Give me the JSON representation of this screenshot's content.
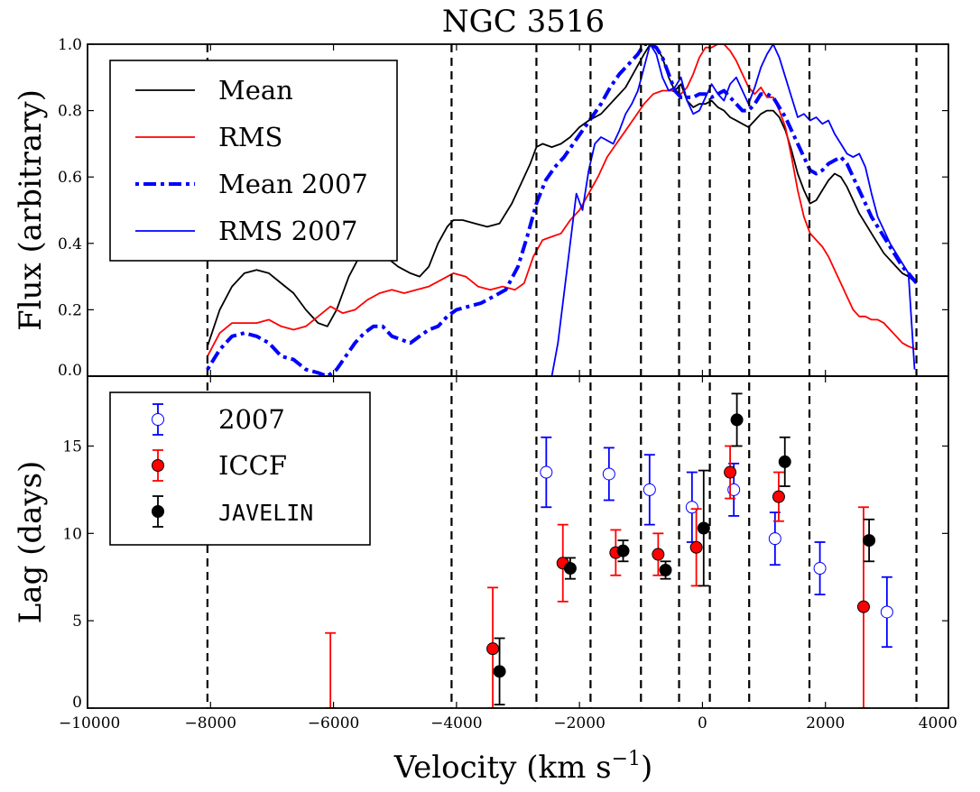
{
  "chart_data": [
    {
      "type": "line",
      "title": "NGC 3516",
      "xlabel": "",
      "ylabel": "Flux (arbitrary)",
      "xlim": [
        -10000,
        4000
      ],
      "ylim": [
        0,
        1.0
      ],
      "yticks": [
        0.0,
        0.2,
        0.4,
        0.6,
        0.8,
        1.0
      ],
      "ytick_labels": [
        "0.0",
        "0.2",
        "0.4",
        "0.6",
        "0.8",
        "1.0"
      ],
      "grid": false,
      "legend_position": "top-left",
      "bin_edges": [
        -8050,
        -4080,
        -2700,
        -1820,
        -1000,
        -380,
        120,
        760,
        1740,
        3480
      ],
      "series": [
        {
          "name": "Mean",
          "color": "#000000",
          "style": "solid",
          "x": [
            -8050,
            -7850,
            -7650,
            -7450,
            -7250,
            -7050,
            -6850,
            -6650,
            -6450,
            -6250,
            -6100,
            -5950,
            -5750,
            -5550,
            -5350,
            -5150,
            -4950,
            -4750,
            -4600,
            -4450,
            -4300,
            -4150,
            -4050,
            -3900,
            -3700,
            -3500,
            -3300,
            -3100,
            -2950,
            -2800,
            -2700,
            -2600,
            -2450,
            -2300,
            -2150,
            -2000,
            -1850,
            -1650,
            -1450,
            -1250,
            -1100,
            -950,
            -850,
            -750,
            -650,
            -550,
            -450,
            -350,
            -250,
            -150,
            -50,
            50,
            150,
            250,
            350,
            450,
            550,
            650,
            750,
            850,
            950,
            1050,
            1150,
            1250,
            1350,
            1450,
            1550,
            1650,
            1750,
            1850,
            1950,
            2050,
            2150,
            2250,
            2350,
            2450,
            2550,
            2650,
            2750,
            2850,
            2950,
            3050,
            3150,
            3250,
            3350,
            3480
          ],
          "values": [
            0.09,
            0.2,
            0.27,
            0.31,
            0.32,
            0.31,
            0.28,
            0.25,
            0.2,
            0.16,
            0.15,
            0.2,
            0.3,
            0.37,
            0.39,
            0.36,
            0.33,
            0.31,
            0.3,
            0.33,
            0.4,
            0.45,
            0.47,
            0.47,
            0.46,
            0.45,
            0.46,
            0.52,
            0.58,
            0.64,
            0.69,
            0.7,
            0.69,
            0.7,
            0.72,
            0.75,
            0.77,
            0.79,
            0.83,
            0.87,
            0.92,
            0.97,
            1.0,
            0.99,
            0.96,
            0.9,
            0.86,
            0.88,
            0.83,
            0.81,
            0.82,
            0.82,
            0.83,
            0.81,
            0.8,
            0.78,
            0.77,
            0.76,
            0.75,
            0.77,
            0.79,
            0.8,
            0.8,
            0.78,
            0.74,
            0.68,
            0.61,
            0.56,
            0.52,
            0.53,
            0.56,
            0.59,
            0.61,
            0.6,
            0.57,
            0.53,
            0.49,
            0.46,
            0.43,
            0.4,
            0.37,
            0.35,
            0.33,
            0.31,
            0.3,
            0.28
          ]
        },
        {
          "name": "RMS",
          "color": "#ff0000",
          "style": "solid",
          "x": [
            -8050,
            -7850,
            -7650,
            -7450,
            -7250,
            -7050,
            -6850,
            -6650,
            -6450,
            -6250,
            -6050,
            -5850,
            -5650,
            -5450,
            -5250,
            -5050,
            -4850,
            -4650,
            -4450,
            -4250,
            -4050,
            -3850,
            -3650,
            -3450,
            -3250,
            -3050,
            -2900,
            -2750,
            -2600,
            -2450,
            -2300,
            -2150,
            -2000,
            -1850,
            -1700,
            -1550,
            -1400,
            -1250,
            -1100,
            -950,
            -800,
            -650,
            -500,
            -350,
            -250,
            -150,
            -50,
            50,
            150,
            250,
            350,
            450,
            550,
            650,
            750,
            850,
            950,
            1050,
            1150,
            1250,
            1350,
            1450,
            1550,
            1650,
            1750,
            1850,
            1950,
            2050,
            2150,
            2250,
            2350,
            2450,
            2550,
            2650,
            2750,
            2850,
            2950,
            3050,
            3150,
            3250,
            3350,
            3480
          ],
          "values": [
            0.06,
            0.13,
            0.16,
            0.16,
            0.16,
            0.17,
            0.15,
            0.14,
            0.15,
            0.18,
            0.21,
            0.19,
            0.2,
            0.23,
            0.25,
            0.26,
            0.25,
            0.26,
            0.27,
            0.29,
            0.31,
            0.3,
            0.27,
            0.26,
            0.27,
            0.26,
            0.28,
            0.36,
            0.41,
            0.42,
            0.43,
            0.47,
            0.5,
            0.55,
            0.6,
            0.66,
            0.7,
            0.74,
            0.78,
            0.82,
            0.85,
            0.86,
            0.86,
            0.85,
            0.87,
            0.91,
            0.96,
            0.99,
            0.99,
            1.0,
            1.0,
            0.98,
            0.95,
            0.91,
            0.87,
            0.85,
            0.87,
            0.84,
            0.84,
            0.8,
            0.75,
            0.66,
            0.56,
            0.48,
            0.43,
            0.41,
            0.39,
            0.36,
            0.32,
            0.28,
            0.24,
            0.2,
            0.18,
            0.18,
            0.17,
            0.17,
            0.16,
            0.14,
            0.12,
            0.1,
            0.09,
            0.08
          ]
        },
        {
          "name": "Mean 2007",
          "color": "#0000ff",
          "style": "dashdot",
          "x": [
            -8050,
            -7850,
            -7650,
            -7450,
            -7250,
            -7050,
            -6850,
            -6650,
            -6450,
            -6250,
            -6100,
            -5950,
            -5800,
            -5650,
            -5500,
            -5350,
            -5200,
            -5050,
            -4900,
            -4750,
            -4600,
            -4450,
            -4300,
            -4150,
            -4000,
            -3800,
            -3600,
            -3400,
            -3200,
            -3000,
            -2850,
            -2700,
            -2550,
            -2400,
            -2250,
            -2100,
            -1950,
            -1800,
            -1650,
            -1500,
            -1350,
            -1200,
            -1050,
            -950,
            -850,
            -750,
            -650,
            -550,
            -450,
            -350,
            -250,
            -150,
            -50,
            50,
            150,
            250,
            350,
            450,
            550,
            650,
            750,
            850,
            950,
            1050,
            1150,
            1250,
            1350,
            1450,
            1550,
            1650,
            1750,
            1850,
            1950,
            2050,
            2150,
            2250,
            2350,
            2450,
            2550,
            2650,
            2750,
            2850,
            2950,
            3050,
            3150,
            3250,
            3350,
            3480
          ],
          "values": [
            0.02,
            0.08,
            0.12,
            0.13,
            0.12,
            0.1,
            0.06,
            0.05,
            0.02,
            0.01,
            0.0,
            0.02,
            0.06,
            0.1,
            0.13,
            0.15,
            0.15,
            0.12,
            0.11,
            0.1,
            0.12,
            0.14,
            0.15,
            0.18,
            0.2,
            0.21,
            0.22,
            0.24,
            0.26,
            0.33,
            0.42,
            0.52,
            0.59,
            0.63,
            0.66,
            0.7,
            0.74,
            0.78,
            0.82,
            0.87,
            0.91,
            0.94,
            0.97,
            1.0,
            1.0,
            0.99,
            0.96,
            0.91,
            0.86,
            0.84,
            0.84,
            0.84,
            0.85,
            0.85,
            0.84,
            0.85,
            0.86,
            0.84,
            0.82,
            0.8,
            0.8,
            0.82,
            0.85,
            0.85,
            0.84,
            0.81,
            0.78,
            0.74,
            0.7,
            0.66,
            0.62,
            0.61,
            0.62,
            0.64,
            0.65,
            0.66,
            0.64,
            0.6,
            0.56,
            0.52,
            0.48,
            0.45,
            0.42,
            0.39,
            0.36,
            0.33,
            0.31,
            0.28
          ]
        },
        {
          "name": "RMS 2007",
          "color": "#0000ff",
          "style": "solid",
          "x": [
            -2450,
            -2350,
            -2250,
            -2150,
            -2050,
            -1950,
            -1850,
            -1750,
            -1650,
            -1550,
            -1450,
            -1350,
            -1250,
            -1150,
            -1050,
            -950,
            -850,
            -750,
            -650,
            -550,
            -450,
            -350,
            -250,
            -150,
            -50,
            50,
            150,
            250,
            350,
            450,
            550,
            650,
            750,
            850,
            950,
            1050,
            1150,
            1250,
            1350,
            1450,
            1550,
            1650,
            1750,
            1850,
            1950,
            2050,
            2150,
            2250,
            2350,
            2450,
            2550,
            2650,
            2750,
            2850,
            2950,
            3050,
            3150,
            3250,
            3350,
            3450
          ],
          "values": [
            0.0,
            0.1,
            0.25,
            0.4,
            0.55,
            0.5,
            0.62,
            0.7,
            0.72,
            0.71,
            0.7,
            0.74,
            0.79,
            0.82,
            0.86,
            0.93,
            1.0,
            0.97,
            0.9,
            0.86,
            0.87,
            0.9,
            0.83,
            0.79,
            0.8,
            0.84,
            0.88,
            0.85,
            0.83,
            0.88,
            0.9,
            0.86,
            0.82,
            0.87,
            0.93,
            0.97,
            1.0,
            0.96,
            0.9,
            0.84,
            0.78,
            0.79,
            0.77,
            0.78,
            0.76,
            0.77,
            0.73,
            0.7,
            0.67,
            0.66,
            0.67,
            0.63,
            0.55,
            0.48,
            0.44,
            0.4,
            0.37,
            0.34,
            0.31,
            0.02
          ]
        }
      ]
    },
    {
      "type": "scatter",
      "xlabel": "Velocity (km s",
      "xlabel_superscript": "−1",
      "xlabel_close": ")",
      "ylabel": "Lag (days)",
      "xlim": [
        -10000,
        4000
      ],
      "ylim": [
        0,
        19
      ],
      "xticks": [
        -10000,
        -8000,
        -6000,
        -4000,
        -2000,
        0,
        2000,
        4000
      ],
      "xtick_labels": [
        "−10000",
        "−8000",
        "−6000",
        "−4000",
        "−2000",
        "0",
        "2000",
        "4000"
      ],
      "yticks": [
        0,
        5,
        10,
        15
      ],
      "ytick_labels": [
        "0",
        "5",
        "10",
        "15"
      ],
      "grid": false,
      "legend_position": "top-left",
      "series": [
        {
          "name": "2007",
          "color": "#0000ff",
          "marker": "open-circle",
          "points": [
            {
              "x": -2540,
              "y": 13.5,
              "ylo": 11.5,
              "yhi": 15.5
            },
            {
              "x": -1520,
              "y": 13.4,
              "ylo": 11.9,
              "yhi": 14.9
            },
            {
              "x": -860,
              "y": 12.5,
              "ylo": 10.5,
              "yhi": 14.5
            },
            {
              "x": -170,
              "y": 11.5,
              "ylo": 9.5,
              "yhi": 13.5
            },
            {
              "x": 510,
              "y": 12.5,
              "ylo": 11.0,
              "yhi": 14.0
            },
            {
              "x": 1180,
              "y": 9.7,
              "ylo": 8.2,
              "yhi": 11.2
            },
            {
              "x": 1910,
              "y": 8.0,
              "ylo": 6.5,
              "yhi": 9.5
            },
            {
              "x": 3000,
              "y": 5.5,
              "ylo": 3.5,
              "yhi": 7.5
            }
          ]
        },
        {
          "name": "ICCF",
          "color": "#ff0000",
          "marker": "filled-circle",
          "points": [
            {
              "x": -6050,
              "y": null,
              "ylo": 0.0,
              "yhi": 4.3
            },
            {
              "x": -3410,
              "y": 3.4,
              "ylo": 0.0,
              "yhi": 6.9
            },
            {
              "x": -2270,
              "y": 8.3,
              "ylo": 6.1,
              "yhi": 10.5
            },
            {
              "x": -1410,
              "y": 8.9,
              "ylo": 7.6,
              "yhi": 10.2
            },
            {
              "x": -720,
              "y": 8.8,
              "ylo": 7.6,
              "yhi": 10.0
            },
            {
              "x": -100,
              "y": 9.2,
              "ylo": 7.0,
              "yhi": 11.4
            },
            {
              "x": 450,
              "y": 13.5,
              "ylo": 12.0,
              "yhi": 15.0
            },
            {
              "x": 1240,
              "y": 12.1,
              "ylo": 10.7,
              "yhi": 13.5
            },
            {
              "x": 2620,
              "y": 5.8,
              "ylo": 0.0,
              "yhi": 11.5
            }
          ]
        },
        {
          "name": "JAVELIN",
          "color": "#000000",
          "marker": "filled-circle",
          "points": [
            {
              "x": -3300,
              "y": 2.1,
              "ylo": 0.2,
              "yhi": 4.0
            },
            {
              "x": -2150,
              "y": 8.0,
              "ylo": 7.4,
              "yhi": 8.6
            },
            {
              "x": -1290,
              "y": 9.0,
              "ylo": 8.4,
              "yhi": 9.6
            },
            {
              "x": -600,
              "y": 7.9,
              "ylo": 7.4,
              "yhi": 8.4
            },
            {
              "x": 20,
              "y": 10.3,
              "ylo": 7.0,
              "yhi": 13.6
            },
            {
              "x": 560,
              "y": 16.5,
              "ylo": 15.0,
              "yhi": 18.0
            },
            {
              "x": 1340,
              "y": 14.1,
              "ylo": 12.7,
              "yhi": 15.5
            },
            {
              "x": 2710,
              "y": 9.6,
              "ylo": 8.4,
              "yhi": 10.8
            }
          ]
        }
      ]
    }
  ]
}
